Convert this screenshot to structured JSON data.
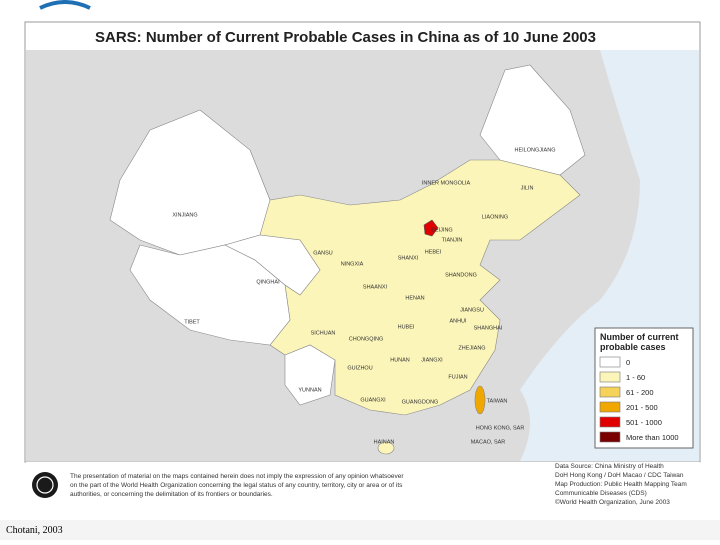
{
  "title": "SARS: Number of Current Probable Cases in China as of 10 June 2003",
  "provinces": [
    "XINJIANG",
    "TIBET",
    "QINGHAI",
    "HEILONGJIANG",
    "INNER MONGOLIA",
    "JILIN",
    "LIAONING",
    "BEIJING",
    "TIANJIN",
    "HEBEI",
    "GANSU",
    "NINGXIA",
    "SHANXI",
    "SHANDONG",
    "SHAANXI",
    "HENAN",
    "JIANGSU",
    "ANHUI",
    "SHANGHAI",
    "HUBEI",
    "SICHUAN",
    "CHONGQING",
    "ZHEJIANG",
    "HUNAN",
    "JIANGXI",
    "GUIZHOU",
    "FUJIAN",
    "YUNNAN",
    "GUANGXI",
    "GUANGDONG",
    "TAIWAN",
    "HONG KONG, SAR",
    "MACAO, SAR",
    "HAINAN"
  ],
  "legend": {
    "title": [
      "Number of current",
      "probable cases"
    ],
    "items": [
      {
        "label": "0",
        "color": "#ffffff"
      },
      {
        "label": "1 - 60",
        "color": "#fbf5b9"
      },
      {
        "label": "61 - 200",
        "color": "#f5d35a"
      },
      {
        "label": "201 - 500",
        "color": "#f0a800"
      },
      {
        "label": "501 - 1000",
        "color": "#e00000"
      },
      {
        "label": "More than 1000",
        "color": "#7a0000"
      }
    ]
  },
  "disclaimer": [
    "The presentation of material on the maps contained herein does not imply the expression of any opinion whatsoever",
    "on the part of the World Health Organization concerning the legal status of any country, territory, city or area or of its",
    "authorities, or concerning the delimitation of its frontiers or boundaries."
  ],
  "source": [
    "Data Source: China Ministry of Health",
    "DoH Hong Kong / DoH Macao / CDC Taiwan",
    "Map Production: Public Health Mapping Team",
    "Communicable Diseases (CDS)",
    "©World Health Organization, June 2003"
  ],
  "credit": "Chotani, 2003"
}
